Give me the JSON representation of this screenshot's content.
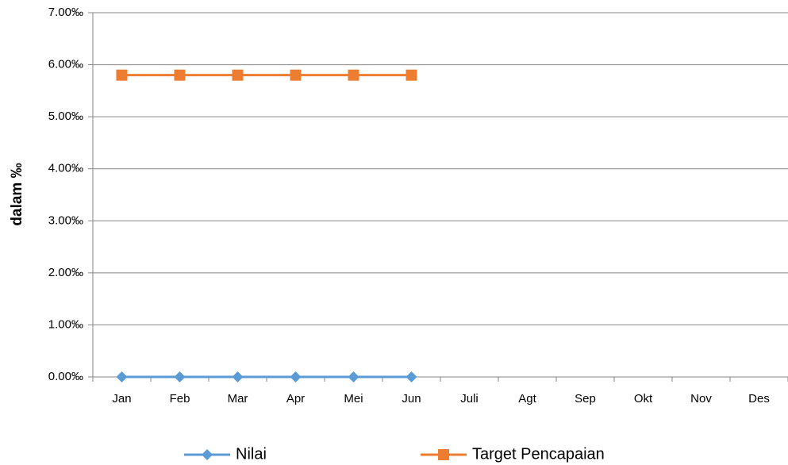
{
  "chart_data": {
    "type": "line",
    "y_label": "dalam ‰",
    "categories": [
      "Jan",
      "Feb",
      "Mar",
      "Apr",
      "Mei",
      "Jun",
      "Juli",
      "Agt",
      "Sep",
      "Okt",
      "Nov",
      "Des"
    ],
    "series": [
      {
        "name": "Nilai",
        "color": "#5b9bd5",
        "marker": "diamond",
        "values": [
          0,
          0,
          0,
          0,
          0,
          0,
          null,
          null,
          null,
          null,
          null,
          null
        ]
      },
      {
        "name": "Target Pencapaian",
        "color": "#ed7d31",
        "marker": "square",
        "values": [
          5.8,
          5.8,
          5.8,
          5.8,
          5.8,
          5.8,
          null,
          null,
          null,
          null,
          null,
          null
        ]
      }
    ],
    "ylim": [
      0,
      7
    ],
    "yticks": [
      {
        "value": 0,
        "label": "0.00‰"
      },
      {
        "value": 1,
        "label": "1.00‰"
      },
      {
        "value": 2,
        "label": "2.00‰"
      },
      {
        "value": 3,
        "label": "3.00‰"
      },
      {
        "value": 4,
        "label": "4.00‰"
      },
      {
        "value": 5,
        "label": "5.00‰"
      },
      {
        "value": 6,
        "label": "6.00‰"
      },
      {
        "value": 7,
        "label": "7.00‰"
      }
    ],
    "grid": true,
    "legend": "bottom"
  }
}
